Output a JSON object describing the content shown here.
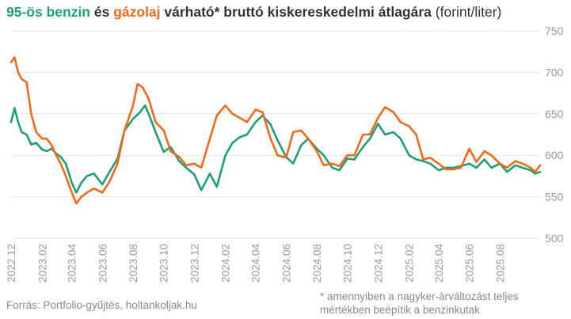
{
  "title": {
    "part_benzin": "95-ös benzin",
    "part_es": " és ",
    "part_gazolaj": "gázolaj",
    "part_rest": " várható* bruttó kiskereskedelmi átlagára",
    "unit": " (forint/liter)"
  },
  "footer": {
    "source": "Forrás: Portfolio-gyűjtés, holtankoljak.hu",
    "note_line1": "* amennyiben a nagyker-árváltozást teljes",
    "note_line2": "mértékben beépítik a benzinkutak"
  },
  "colors": {
    "benzin": "#1e9e7a",
    "gazolaj": "#f06a1c",
    "grid": "#e3e3e3",
    "tick_text": "#9a9a9a"
  },
  "chart_data": {
    "type": "line",
    "title": "95-ös benzin és gázolaj várható* bruttó kiskereskedelmi átlagára (forint/liter)",
    "ylim": [
      500,
      750
    ],
    "y_ticks": [
      "750",
      "700",
      "650",
      "600",
      "550",
      "500"
    ],
    "y_axis_side": "right",
    "grid": true,
    "x_range": [
      "2022-12-01",
      "2025-10-20"
    ],
    "x_ticks": [
      "2022.12",
      "2023.02",
      "2023.04",
      "2023.06",
      "2023.08",
      "2023.10",
      "2023.12",
      "2024.02",
      "2024.04",
      "2024.06",
      "2024.08",
      "2024.10",
      "2024.12",
      "2025.02",
      "2025.04",
      "2025.06",
      "2025.08"
    ],
    "series": [
      {
        "name": "95-ös benzin",
        "x": [
          "2022-12-01",
          "2022-12-08",
          "2022-12-15",
          "2022-12-22",
          "2023-01-01",
          "2023-01-10",
          "2023-01-20",
          "2023-02-01",
          "2023-02-10",
          "2023-02-20",
          "2023-03-01",
          "2023-03-10",
          "2023-03-20",
          "2023-04-01",
          "2023-04-10",
          "2023-04-20",
          "2023-05-01",
          "2023-05-15",
          "2023-06-01",
          "2023-06-15",
          "2023-07-01",
          "2023-07-15",
          "2023-08-01",
          "2023-08-15",
          "2023-08-25",
          "2023-09-01",
          "2023-09-15",
          "2023-10-01",
          "2023-10-15",
          "2023-11-01",
          "2023-11-15",
          "2023-12-01",
          "2023-12-15",
          "2024-01-01",
          "2024-01-15",
          "2024-02-01",
          "2024-02-15",
          "2024-03-01",
          "2024-03-15",
          "2024-04-01",
          "2024-04-15",
          "2024-05-01",
          "2024-05-15",
          "2024-06-01",
          "2024-06-15",
          "2024-07-01",
          "2024-07-15",
          "2024-08-01",
          "2024-08-15",
          "2024-09-01",
          "2024-09-15",
          "2024-10-01",
          "2024-10-15",
          "2024-11-01",
          "2024-11-15",
          "2024-12-01",
          "2024-12-15",
          "2025-01-01",
          "2025-01-15",
          "2025-02-01",
          "2025-02-15",
          "2025-03-01",
          "2025-03-15",
          "2025-04-01",
          "2025-04-15",
          "2025-05-01",
          "2025-05-15",
          "2025-06-01",
          "2025-06-15",
          "2025-07-01",
          "2025-07-15",
          "2025-08-01",
          "2025-08-15",
          "2025-09-01",
          "2025-09-15",
          "2025-10-01",
          "2025-10-10",
          "2025-10-20"
        ],
        "values": [
          640,
          657,
          640,
          628,
          625,
          613,
          615,
          607,
          605,
          608,
          602,
          598,
          590,
          567,
          555,
          567,
          575,
          578,
          565,
          580,
          596,
          630,
          644,
          652,
          660,
          650,
          628,
          604,
          610,
          593,
          585,
          577,
          558,
          578,
          562,
          600,
          615,
          622,
          625,
          640,
          648,
          637,
          618,
          598,
          590,
          612,
          620,
          608,
          600,
          585,
          582,
          596,
          595,
          610,
          620,
          638,
          625,
          628,
          620,
          600,
          595,
          593,
          590,
          582,
          585,
          585,
          587,
          590,
          585,
          595,
          585,
          590,
          580,
          588,
          585,
          582,
          578,
          580
        ]
      },
      {
        "name": "gázolaj",
        "x": [
          "2022-12-01",
          "2022-12-08",
          "2022-12-15",
          "2022-12-22",
          "2023-01-01",
          "2023-01-10",
          "2023-01-20",
          "2023-02-01",
          "2023-02-10",
          "2023-02-20",
          "2023-03-01",
          "2023-03-10",
          "2023-03-20",
          "2023-04-01",
          "2023-04-10",
          "2023-04-20",
          "2023-05-01",
          "2023-05-15",
          "2023-06-01",
          "2023-06-15",
          "2023-07-01",
          "2023-07-15",
          "2023-08-01",
          "2023-08-10",
          "2023-08-20",
          "2023-09-01",
          "2023-09-15",
          "2023-10-01",
          "2023-10-15",
          "2023-11-01",
          "2023-11-15",
          "2023-12-01",
          "2023-12-15",
          "2024-01-01",
          "2024-01-15",
          "2024-02-01",
          "2024-02-15",
          "2024-03-01",
          "2024-03-15",
          "2024-04-01",
          "2024-04-15",
          "2024-05-01",
          "2024-05-15",
          "2024-06-01",
          "2024-06-15",
          "2024-07-01",
          "2024-07-15",
          "2024-08-01",
          "2024-08-15",
          "2024-09-01",
          "2024-09-15",
          "2024-10-01",
          "2024-10-15",
          "2024-11-01",
          "2024-11-15",
          "2024-12-01",
          "2024-12-15",
          "2025-01-01",
          "2025-01-15",
          "2025-02-01",
          "2025-02-15",
          "2025-03-01",
          "2025-03-15",
          "2025-04-01",
          "2025-04-15",
          "2025-05-01",
          "2025-05-15",
          "2025-06-01",
          "2025-06-15",
          "2025-07-01",
          "2025-07-15",
          "2025-08-01",
          "2025-08-15",
          "2025-09-01",
          "2025-09-15",
          "2025-10-01",
          "2025-10-10",
          "2025-10-20"
        ],
        "values": [
          712,
          718,
          700,
          692,
          688,
          650,
          628,
          620,
          620,
          612,
          600,
          590,
          575,
          555,
          542,
          550,
          555,
          560,
          555,
          568,
          590,
          630,
          660,
          686,
          682,
          668,
          640,
          630,
          605,
          598,
          588,
          590,
          585,
          620,
          648,
          660,
          650,
          645,
          640,
          655,
          652,
          620,
          600,
          597,
          628,
          630,
          620,
          605,
          588,
          590,
          587,
          600,
          600,
          625,
          625,
          645,
          658,
          652,
          640,
          635,
          625,
          595,
          597,
          590,
          583,
          583,
          585,
          608,
          592,
          605,
          600,
          590,
          585,
          593,
          590,
          585,
          580,
          588
        ]
      }
    ]
  }
}
